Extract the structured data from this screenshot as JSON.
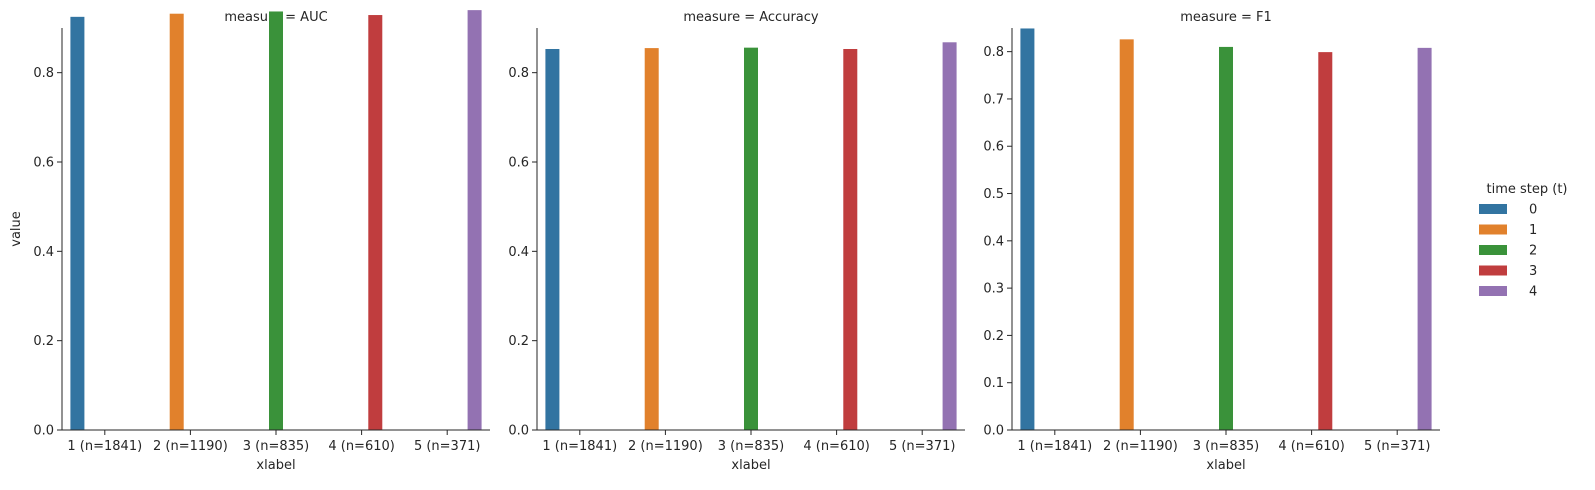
{
  "chart_data": {
    "type": "bar",
    "layout": "facet-grid",
    "facet_label_prefix": "measure = ",
    "xlabel": "xlabel",
    "ylabel": "value",
    "categories": [
      "1 (n=1841)",
      "2 (n=1190)",
      "3 (n=835)",
      "4 (n=610)",
      "5 (n=371)"
    ],
    "legend": {
      "title": "time step (t)",
      "placement": "right",
      "entries": [
        {
          "label": "0",
          "color": "#3274a1"
        },
        {
          "label": "1",
          "color": "#e1812c"
        },
        {
          "label": "2",
          "color": "#3a923a"
        },
        {
          "label": "3",
          "color": "#c03d3e"
        },
        {
          "label": "4",
          "color": "#9372b2"
        }
      ]
    },
    "panels": [
      {
        "measure": "AUC",
        "title": "measure = AUC",
        "ylim": [
          0,
          0.9
        ],
        "yticks": [
          "0.0",
          "0.2",
          "0.4",
          "0.6",
          "0.8"
        ],
        "values": [
          0.925,
          0.932,
          0.937,
          0.929,
          0.94
        ]
      },
      {
        "measure": "Accuracy",
        "title": "measure = Accuracy",
        "ylim": [
          0,
          0.9
        ],
        "yticks": [
          "0.0",
          "0.2",
          "0.4",
          "0.6",
          "0.8"
        ],
        "values": [
          0.853,
          0.855,
          0.856,
          0.853,
          0.868
        ]
      },
      {
        "measure": "F1",
        "title": "measure = F1",
        "ylim": [
          0,
          0.85
        ],
        "yticks": [
          "0.0",
          "0.1",
          "0.2",
          "0.3",
          "0.4",
          "0.5",
          "0.6",
          "0.7",
          "0.8"
        ],
        "values": [
          0.849,
          0.826,
          0.81,
          0.799,
          0.808
        ]
      }
    ]
  }
}
